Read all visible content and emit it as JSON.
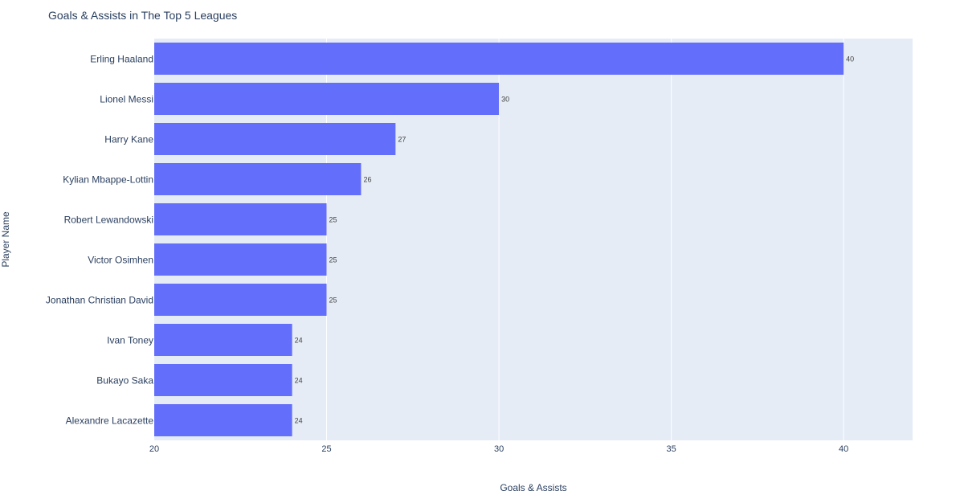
{
  "chart_data": {
    "type": "bar",
    "orientation": "horizontal",
    "title": "Goals & Assists in The Top 5 Leagues",
    "xlabel": "Goals & Assists",
    "ylabel": "Player Name",
    "categories": [
      "Erling Haaland",
      "Lionel Messi",
      "Harry Kane",
      "Kylian Mbappe-Lottin",
      "Robert Lewandowski",
      "Victor Osimhen",
      "Jonathan Christian David",
      "Ivan Toney",
      "Bukayo Saka",
      "Alexandre Lacazette"
    ],
    "values": [
      40,
      30,
      27,
      26,
      25,
      25,
      25,
      24,
      24,
      24
    ],
    "xlim": [
      20,
      42
    ],
    "xticks": [
      20,
      25,
      30,
      35,
      40
    ],
    "grid": true,
    "bar_color": "#636efa",
    "plot_bg": "#e5ecf6",
    "text_color": "#2a3f5f"
  }
}
